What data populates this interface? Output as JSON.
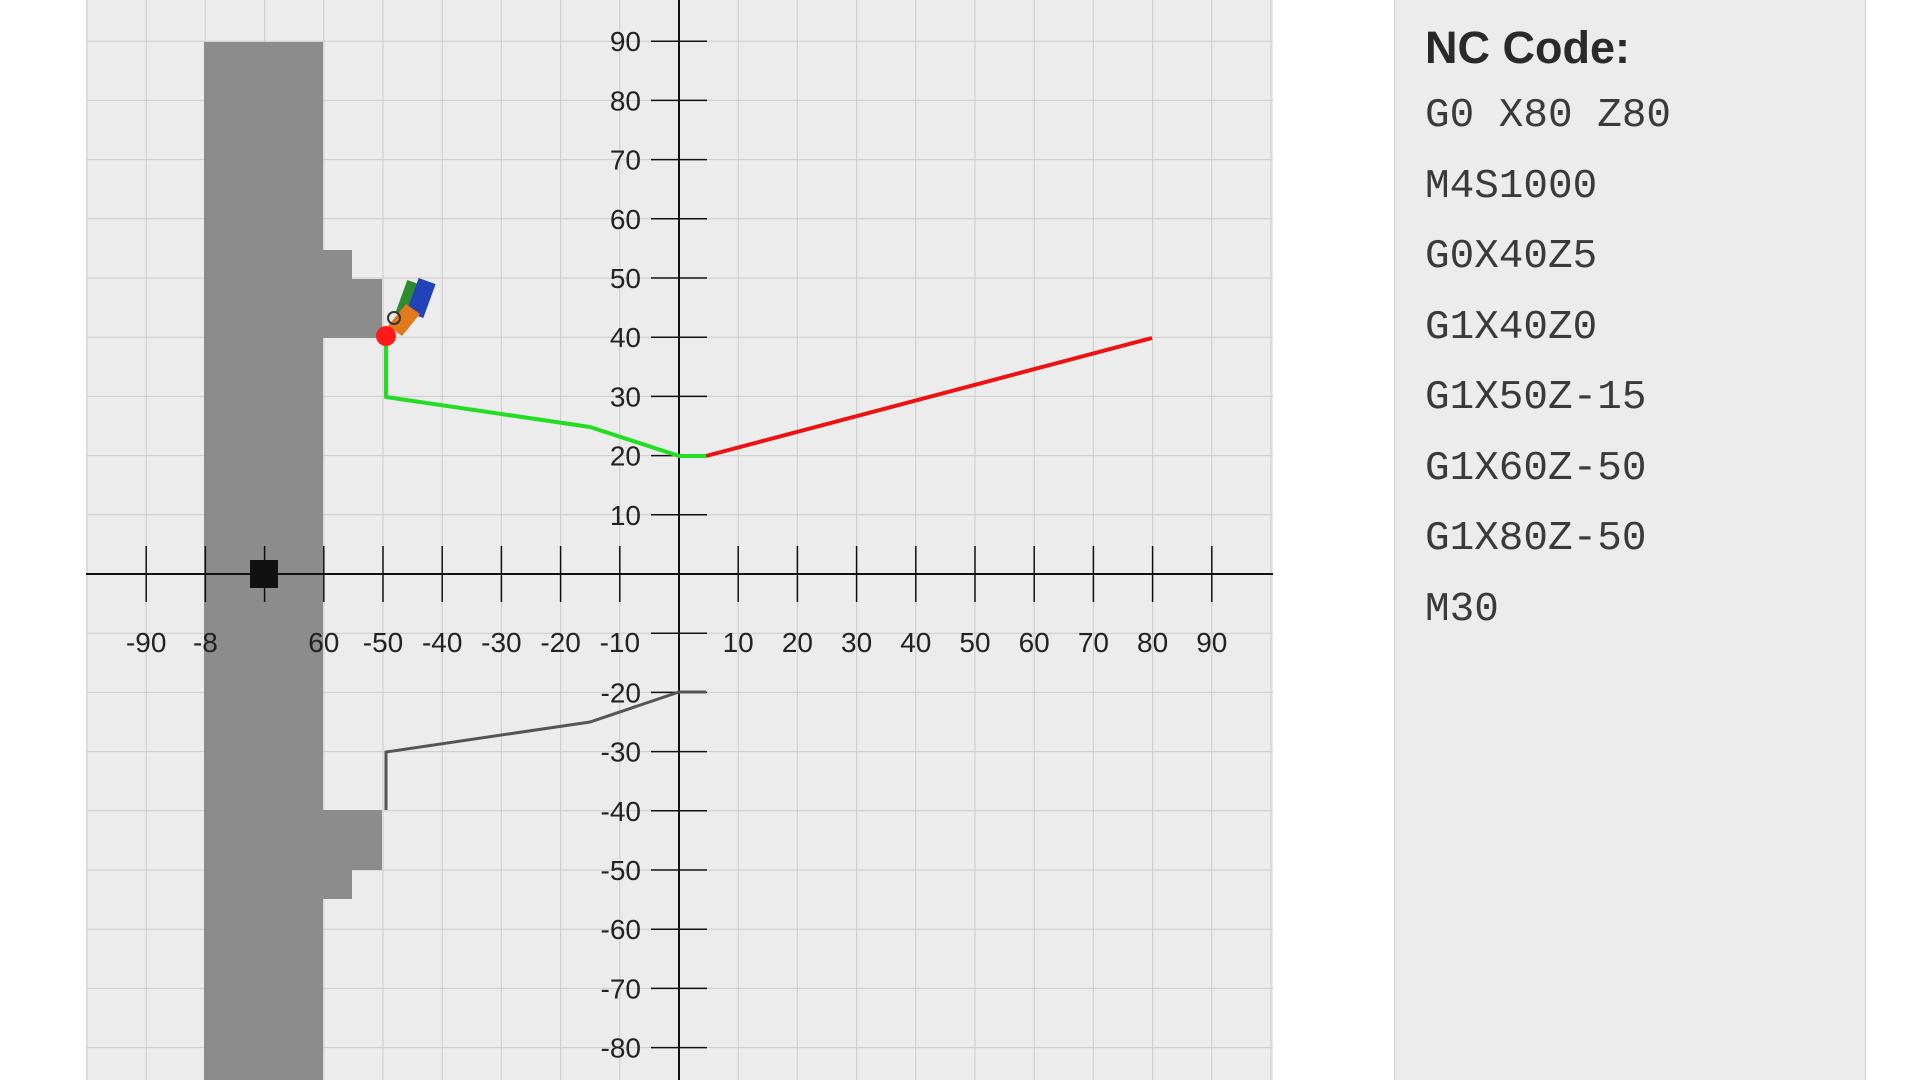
{
  "simulator": {
    "x_ticks": [
      "-90",
      "-8",
      "60",
      "-50",
      "-40",
      "-30",
      "-20",
      "-10",
      "10",
      "20",
      "30",
      "40",
      "50",
      "60",
      "70",
      "80",
      "90"
    ],
    "y_ticks": [
      "90",
      "80",
      "70",
      "60",
      "50",
      "40",
      "30",
      "20",
      "10",
      "-20",
      "-30",
      "-40",
      "-50",
      "-60",
      "-70",
      "-80"
    ],
    "colors": {
      "background": "#ececec",
      "grid": "#cccccc",
      "axis": "#111111",
      "stock": "#8c8c8c",
      "rapid_path": "#ee1111",
      "cut_path": "#22dd22",
      "lower_profile": "#555555",
      "tool_point": "#ff1a1a",
      "chuck_marker": "#111111"
    },
    "icons": [
      "lathe-tool-icon",
      "chuck-marker"
    ]
  },
  "nc_code": {
    "title": "NC Code:",
    "lines": [
      "G0 X80 Z80",
      "M4S1000",
      "G0X40Z5",
      "G1X40Z0",
      "G1X50Z-15",
      "G1X60Z-50",
      "G1X80Z-50",
      "M30"
    ]
  }
}
